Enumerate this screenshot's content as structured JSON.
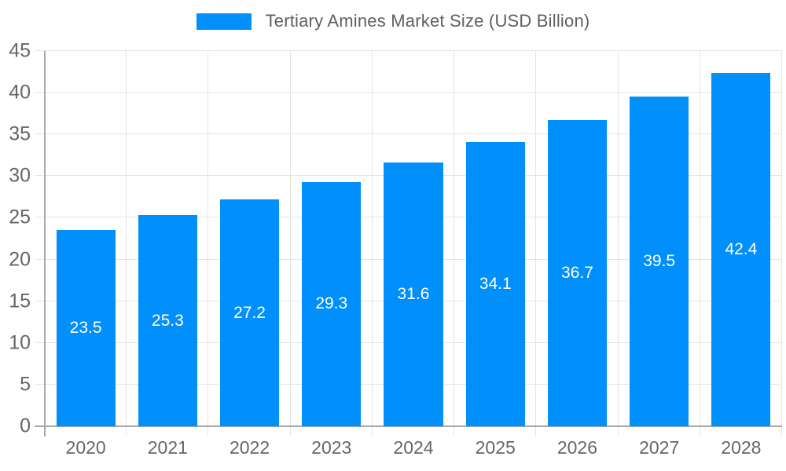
{
  "chart_data": {
    "type": "bar",
    "title": "Tertiary Amines Market Size (USD Billion)",
    "categories": [
      "2020",
      "2021",
      "2022",
      "2023",
      "2024",
      "2025",
      "2026",
      "2027",
      "2028"
    ],
    "series": [
      {
        "name": "Tertiary Amines Market Size (USD Billion)",
        "values": [
          23.5,
          25.3,
          27.2,
          29.3,
          31.6,
          34.1,
          36.7,
          39.5,
          42.4
        ]
      }
    ],
    "value_labels": [
      "23.5",
      "25.3",
      "27.2",
      "29.3",
      "31.6",
      "34.1",
      "36.7",
      "39.5",
      "42.4"
    ],
    "xlabel": "",
    "ylabel": "",
    "ylim": [
      0,
      45
    ],
    "yticks": [
      0,
      5,
      10,
      15,
      20,
      25,
      30,
      35,
      40,
      45
    ],
    "grid": true,
    "legend_position": "top",
    "value_label_position": "inside-center"
  },
  "legend": {
    "items": [
      {
        "label": "Tertiary Amines Market Size (USD Billion)",
        "swatch_color": "#008ffb"
      }
    ]
  },
  "colors": {
    "bar": "#008ffb",
    "bar_value_label": "#ffffff",
    "axis_line": "#a8a8a8",
    "grid_line": "#e4e4e4",
    "axis_tick_label": "#666666",
    "legend_text": "#606060",
    "background": "#ffffff"
  }
}
